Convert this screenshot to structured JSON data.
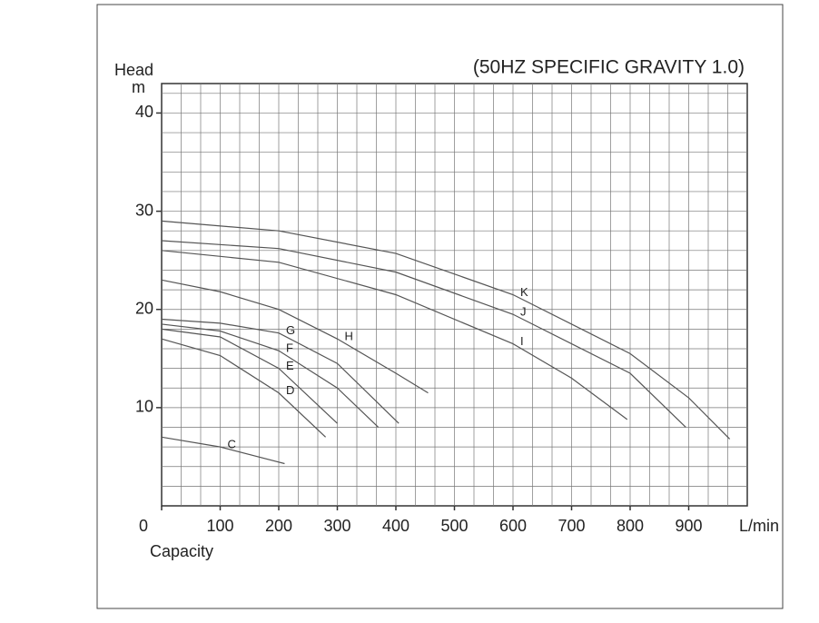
{
  "chart_data": {
    "type": "line",
    "title": "(50HZ SPECIFIC GRAVITY 1.0)",
    "y_label": "Head",
    "y_unit": "m",
    "x_label": "Capacity",
    "x_unit": "L/min",
    "xlim": [
      0,
      1000
    ],
    "xticks": [
      0,
      100,
      200,
      300,
      400,
      500,
      600,
      700,
      800,
      900
    ],
    "ylim": [
      0,
      43
    ],
    "yticks": [
      10,
      20,
      30,
      40
    ],
    "grid": true,
    "series": [
      {
        "name": "C",
        "color": "#555",
        "x": [
          0,
          100,
          210
        ],
        "values": [
          7,
          6,
          4.3
        ]
      },
      {
        "name": "D",
        "color": "#555",
        "x": [
          0,
          100,
          200,
          280
        ],
        "values": [
          17,
          15.3,
          11.5,
          7
        ]
      },
      {
        "name": "E",
        "color": "#555",
        "x": [
          0,
          100,
          200,
          300
        ],
        "values": [
          18,
          17.2,
          14,
          8.4
        ]
      },
      {
        "name": "F",
        "color": "#555",
        "x": [
          0,
          100,
          200,
          300,
          370
        ],
        "values": [
          18.5,
          17.8,
          15.8,
          12,
          8
        ]
      },
      {
        "name": "G",
        "color": "#555",
        "x": [
          0,
          100,
          200,
          300,
          405
        ],
        "values": [
          19,
          18.6,
          17.6,
          14.5,
          8.4
        ]
      },
      {
        "name": "H",
        "color": "#555",
        "x": [
          0,
          100,
          200,
          300,
          400,
          455
        ],
        "values": [
          23,
          21.8,
          20,
          17,
          13.5,
          11.5
        ]
      },
      {
        "name": "I",
        "color": "#555",
        "x": [
          0,
          200,
          400,
          600,
          700,
          795
        ],
        "values": [
          26,
          24.8,
          21.5,
          16.5,
          13,
          8.8
        ]
      },
      {
        "name": "J",
        "color": "#555",
        "x": [
          0,
          200,
          400,
          600,
          800,
          895
        ],
        "values": [
          27,
          26.2,
          23.8,
          19.5,
          13.5,
          8
        ]
      },
      {
        "name": "K",
        "color": "#555",
        "x": [
          0,
          200,
          400,
          600,
          800,
          900,
          970
        ],
        "values": [
          29,
          28,
          25.7,
          21.5,
          15.5,
          11,
          6.8
        ]
      }
    ]
  }
}
